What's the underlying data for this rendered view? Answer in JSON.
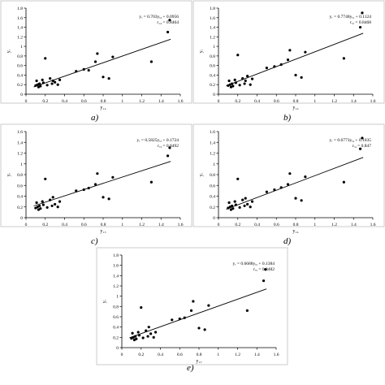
{
  "chart_data": [
    {
      "type": "scatter",
      "caption": "a)",
      "xlabel": "y₁₄",
      "ylabel": "yᵣ",
      "equation": "yᵣ = 0.703yᵢ₄ + 0.0956",
      "r_text": "r₁₄ = 0.8464",
      "xlim": [
        0,
        1.6
      ],
      "ylim": [
        0,
        1.8
      ],
      "xticks": [
        "0",
        "0.2",
        "0.4",
        "0.6",
        "0.8",
        "1",
        "1.2",
        "1.4",
        "1.6"
      ],
      "yticks": [
        "0",
        "0.2",
        "0.4",
        "0.6",
        "0.8",
        "1",
        "1.2",
        "1.4",
        "1.6",
        "1.8"
      ],
      "x": [
        0.1,
        0.11,
        0.12,
        0.13,
        0.14,
        0.15,
        0.17,
        0.18,
        0.2,
        0.22,
        0.25,
        0.27,
        0.28,
        0.3,
        0.33,
        0.35,
        0.52,
        0.6,
        0.65,
        0.72,
        0.74,
        0.8,
        0.86,
        0.9,
        1.3,
        1.47,
        1.49
      ],
      "y": [
        0.18,
        0.28,
        0.2,
        0.15,
        0.22,
        0.17,
        0.3,
        0.24,
        0.75,
        0.19,
        0.33,
        0.22,
        0.28,
        0.25,
        0.2,
        0.3,
        0.48,
        0.52,
        0.5,
        0.68,
        0.85,
        0.36,
        0.33,
        0.78,
        0.68,
        1.3,
        1.55
      ],
      "fit": {
        "slope": 0.703,
        "intercept": 0.0956
      }
    },
    {
      "type": "scatter",
      "caption": "b)",
      "xlabel": "y₁₂",
      "ylabel": "yᵣ",
      "equation": "yᵣ = 0.7748yᵢ₂ + 0.1124",
      "r_text": "rᵣ₂ = 0.8468",
      "xlim": [
        0,
        1.6
      ],
      "ylim": [
        0,
        1.8
      ],
      "xticks": [
        "0",
        "0.2",
        "0.4",
        "0.6",
        "0.8",
        "1",
        "1.2",
        "1.4",
        "1.6"
      ],
      "yticks": [
        "0",
        "0.2",
        "0.4",
        "0.6",
        "0.8",
        "1",
        "1.2",
        "1.4",
        "1.6",
        "1.8"
      ],
      "x": [
        0.1,
        0.11,
        0.12,
        0.13,
        0.14,
        0.15,
        0.17,
        0.18,
        0.2,
        0.22,
        0.25,
        0.27,
        0.28,
        0.3,
        0.33,
        0.35,
        0.5,
        0.58,
        0.65,
        0.72,
        0.74,
        0.8,
        0.86,
        0.9,
        1.3,
        1.47,
        1.49
      ],
      "y": [
        0.18,
        0.28,
        0.2,
        0.15,
        0.22,
        0.17,
        0.3,
        0.24,
        0.82,
        0.19,
        0.33,
        0.22,
        0.28,
        0.38,
        0.2,
        0.32,
        0.55,
        0.58,
        0.62,
        0.72,
        0.92,
        0.4,
        0.35,
        0.88,
        0.75,
        1.4,
        1.7
      ],
      "fit": {
        "slope": 0.7748,
        "intercept": 0.1124
      }
    },
    {
      "type": "scatter",
      "caption": "c)",
      "xlabel": "y₁₃",
      "ylabel": "yᵣ",
      "equation": "yᵣ = 0.5825yᵢ₃ + 0.1724",
      "r_text": "rᵣ₃ = 0.8492",
      "xlim": [
        0,
        1.6
      ],
      "ylim": [
        0,
        1.6
      ],
      "xticks": [
        "0",
        "0.2",
        "0.4",
        "0.6",
        "0.8",
        "1",
        "1.2",
        "1.4",
        "1.6"
      ],
      "yticks": [
        "0",
        "0.2",
        "0.4",
        "0.6",
        "0.8",
        "1",
        "1.2",
        "1.4",
        "1.6"
      ],
      "x": [
        0.1,
        0.11,
        0.12,
        0.13,
        0.14,
        0.15,
        0.17,
        0.18,
        0.2,
        0.22,
        0.25,
        0.27,
        0.28,
        0.3,
        0.33,
        0.35,
        0.52,
        0.6,
        0.65,
        0.72,
        0.74,
        0.8,
        0.86,
        0.9,
        1.3,
        1.47,
        1.49
      ],
      "y": [
        0.18,
        0.28,
        0.2,
        0.15,
        0.22,
        0.17,
        0.3,
        0.24,
        0.72,
        0.19,
        0.33,
        0.22,
        0.38,
        0.25,
        0.2,
        0.3,
        0.5,
        0.52,
        0.55,
        0.62,
        0.82,
        0.38,
        0.35,
        0.75,
        0.66,
        1.15,
        1.3
      ],
      "fit": {
        "slope": 0.5825,
        "intercept": 0.1724
      }
    },
    {
      "type": "scatter",
      "caption": "d)",
      "xlabel": "y₁₄",
      "ylabel": "yᵣ",
      "equation": "yᵣ = 0.6773yᵢ₄ + 0.1035",
      "r_text": "rᵣ₄ = 0.847",
      "xlim": [
        0,
        1.6
      ],
      "ylim": [
        0,
        1.6
      ],
      "xticks": [
        "0",
        "0.2",
        "0.4",
        "0.6",
        "0.8",
        "1",
        "1.2",
        "1.4",
        "1.6"
      ],
      "yticks": [
        "0",
        "0.2",
        "0.4",
        "0.6",
        "0.8",
        "1",
        "1.2",
        "1.4",
        "1.6"
      ],
      "x": [
        0.1,
        0.11,
        0.12,
        0.13,
        0.14,
        0.15,
        0.17,
        0.18,
        0.2,
        0.22,
        0.25,
        0.27,
        0.28,
        0.3,
        0.33,
        0.35,
        0.5,
        0.58,
        0.65,
        0.72,
        0.74,
        0.8,
        0.86,
        0.9,
        1.3,
        1.47,
        1.49
      ],
      "y": [
        0.18,
        0.28,
        0.2,
        0.15,
        0.22,
        0.17,
        0.3,
        0.24,
        0.72,
        0.19,
        0.33,
        0.22,
        0.36,
        0.25,
        0.2,
        0.3,
        0.48,
        0.52,
        0.56,
        0.62,
        0.82,
        0.36,
        0.32,
        0.76,
        0.66,
        1.28,
        1.48
      ],
      "fit": {
        "slope": 0.6773,
        "intercept": 0.1035
      }
    },
    {
      "type": "scatter",
      "caption": "e)",
      "xlabel": "y₁₅",
      "ylabel": "yᵣ",
      "equation": "yᵣ = 0.6688yᵢ₅ + 0.1384",
      "r_text": "rᵣ₅ = 0.8482",
      "xlim": [
        0,
        1.6
      ],
      "ylim": [
        0,
        1.8
      ],
      "xticks": [
        "0",
        "0.2",
        "0.4",
        "0.6",
        "0.8",
        "1",
        "1.2",
        "1.4",
        "1.6"
      ],
      "yticks": [
        "0",
        "0.2",
        "0.4",
        "0.6",
        "0.8",
        "1",
        "1.2",
        "1.4",
        "1.6",
        "1.8"
      ],
      "x": [
        0.1,
        0.11,
        0.12,
        0.13,
        0.14,
        0.15,
        0.17,
        0.18,
        0.2,
        0.22,
        0.25,
        0.27,
        0.28,
        0.3,
        0.33,
        0.35,
        0.52,
        0.6,
        0.65,
        0.72,
        0.74,
        0.8,
        0.86,
        0.9,
        1.3,
        1.47,
        1.49
      ],
      "y": [
        0.18,
        0.28,
        0.2,
        0.15,
        0.22,
        0.17,
        0.3,
        0.24,
        0.78,
        0.19,
        0.33,
        0.22,
        0.4,
        0.27,
        0.2,
        0.3,
        0.54,
        0.56,
        0.58,
        0.72,
        0.9,
        0.38,
        0.35,
        0.82,
        0.72,
        1.3,
        1.52
      ],
      "fit": {
        "slope": 0.6688,
        "intercept": 0.1384
      }
    }
  ]
}
